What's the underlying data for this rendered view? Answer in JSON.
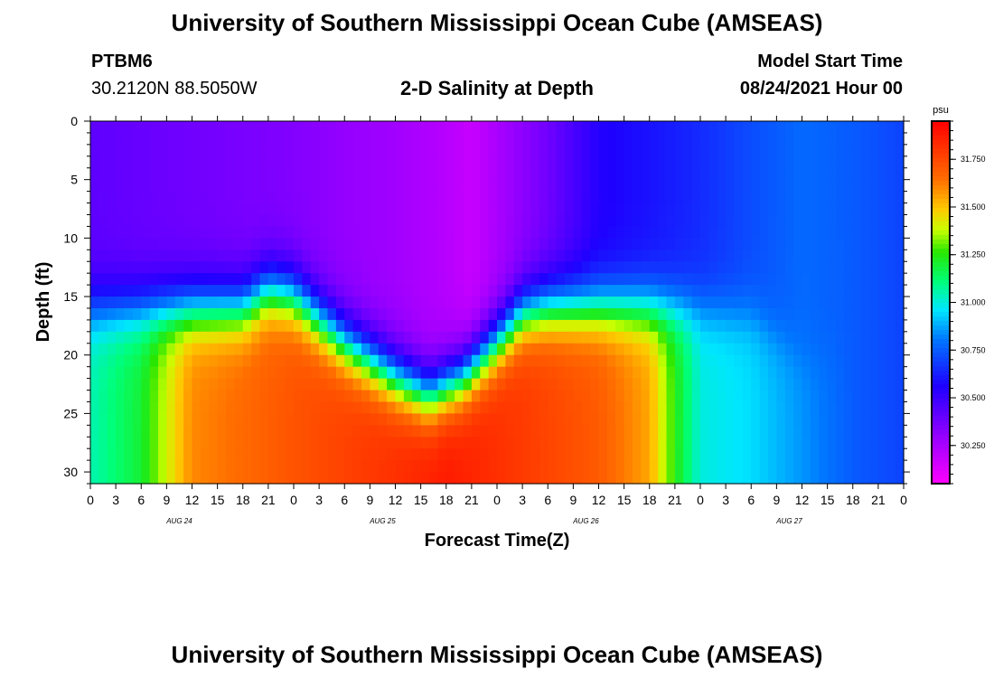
{
  "header": {
    "title": "University of Southern Mississippi Ocean Cube (AMSEAS)",
    "station_id": "PTBM6",
    "station_coords": "30.2120N  88.5050W",
    "subtitle": "2-D Salinity at Depth",
    "model_label": "Model Start Time",
    "model_time": "08/24/2021 Hour 00"
  },
  "footer": {
    "title": "University of Southern Mississippi Ocean Cube (AMSEAS)"
  },
  "chart_data": {
    "type": "heatmap",
    "title": "2-D Salinity at Depth",
    "xlabel": "Forecast Time(Z)",
    "ylabel": "Depth (ft)",
    "x_hours_range": [
      0,
      96
    ],
    "y_range": [
      0,
      31
    ],
    "y_ticks": [
      "0",
      "5",
      "10",
      "15",
      "20",
      "25",
      "30"
    ],
    "x_tick_labels": [
      "0",
      "3",
      "6",
      "9",
      "12",
      "15",
      "18",
      "21",
      "0",
      "3",
      "6",
      "9",
      "12",
      "15",
      "18",
      "21",
      "0",
      "3",
      "6",
      "9",
      "12",
      "15",
      "18",
      "21",
      "0",
      "3",
      "6",
      "9",
      "12",
      "15",
      "18",
      "21",
      "0"
    ],
    "date_labels": [
      "AUG 24",
      "AUG 25",
      "AUG 26",
      "AUG 27"
    ],
    "colorbar": {
      "unit": "psu",
      "range": [
        30.05,
        31.95
      ],
      "tick_labels": [
        "30.250",
        "30.500",
        "30.750",
        "31.000",
        "31.250",
        "31.500",
        "31.750"
      ],
      "tick_values": [
        30.25,
        30.5,
        30.75,
        31.0,
        31.25,
        31.5,
        31.75
      ]
    },
    "halocline_depth_ft": {
      "hours": [
        0,
        6,
        12,
        18,
        21,
        24,
        30,
        36,
        40,
        44,
        48,
        51,
        54,
        60,
        66,
        72,
        78,
        84,
        90,
        96
      ],
      "values": [
        16,
        16,
        16,
        16,
        14.5,
        15,
        19,
        22,
        23.5,
        22,
        19,
        16.5,
        16,
        16,
        16,
        16,
        16.5,
        20,
        20,
        20
      ]
    },
    "surface_salinity_psu": {
      "hours": [
        0,
        6,
        12,
        18,
        24,
        30,
        36,
        42,
        45,
        48,
        54,
        60,
        66,
        72,
        78,
        84,
        90,
        96
      ],
      "values": [
        30.42,
        30.4,
        30.38,
        30.36,
        30.34,
        30.3,
        30.27,
        30.22,
        30.18,
        30.25,
        30.38,
        30.55,
        30.6,
        30.65,
        30.72,
        30.78,
        30.75,
        30.7
      ]
    },
    "bottom_salinity_psu": {
      "hours": [
        0,
        6,
        9,
        12,
        24,
        36,
        42,
        48,
        60,
        66,
        69,
        72,
        78,
        84,
        90,
        96
      ],
      "values": [
        31.05,
        31.2,
        31.4,
        31.6,
        31.72,
        31.82,
        31.88,
        31.82,
        31.7,
        31.55,
        31.25,
        31.0,
        30.95,
        30.85,
        30.75,
        30.7
      ]
    }
  }
}
